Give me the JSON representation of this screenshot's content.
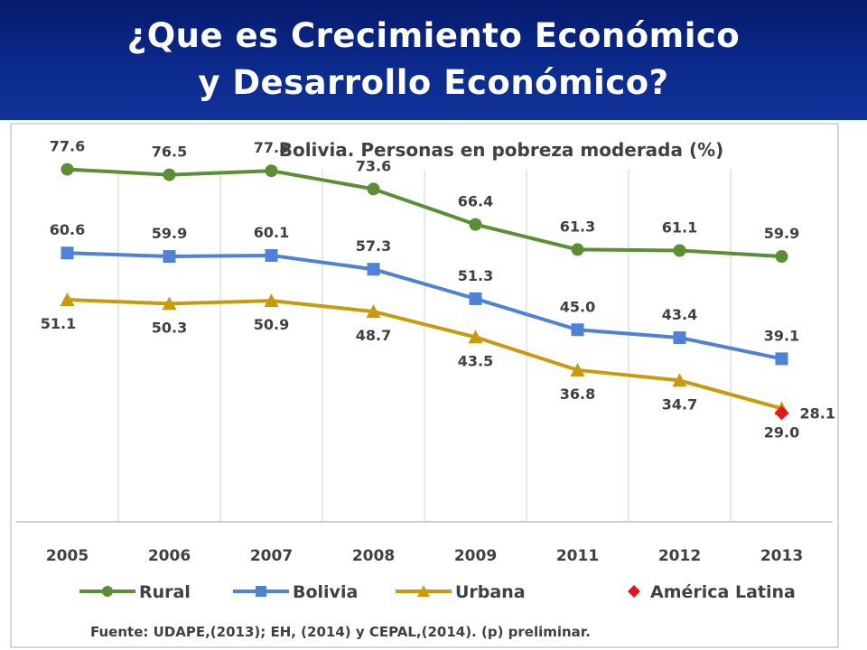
{
  "slide": {
    "title_line1": "¿Que es Crecimiento Económico",
    "title_line2": "y Desarrollo Económico?"
  },
  "chart_data": {
    "type": "line",
    "title": "Bolivia. Personas en pobreza moderada (%)",
    "categories": [
      "2005",
      "2006",
      "2007",
      "2008",
      "2009",
      "2011",
      "2012",
      "2013"
    ],
    "ylim": [
      0,
      100
    ],
    "grid": "vertical",
    "legend": "bottom",
    "source": "Fuente: UDAPE,(2013); EH, (2014) y CEPAL,(2014). (p) preliminar.",
    "series": [
      {
        "name": "Rural",
        "color": "#5a8f36",
        "marker": "circle",
        "values": [
          77.6,
          76.5,
          77.3,
          73.6,
          66.4,
          61.3,
          61.1,
          59.9
        ]
      },
      {
        "name": "Bolivia",
        "color": "#4f81d4",
        "marker": "square",
        "values": [
          60.6,
          59.9,
          60.1,
          57.3,
          51.3,
          45.0,
          43.4,
          39.1
        ]
      },
      {
        "name": "Urbana",
        "color": "#c89a0e",
        "marker": "triangle",
        "values": [
          51.1,
          50.3,
          50.9,
          48.7,
          43.5,
          36.8,
          34.7,
          29.0
        ]
      },
      {
        "name": "América Latina",
        "color": "#e8141c",
        "marker": "diamond",
        "values": [
          null,
          null,
          null,
          null,
          null,
          null,
          null,
          28.1
        ]
      }
    ]
  }
}
